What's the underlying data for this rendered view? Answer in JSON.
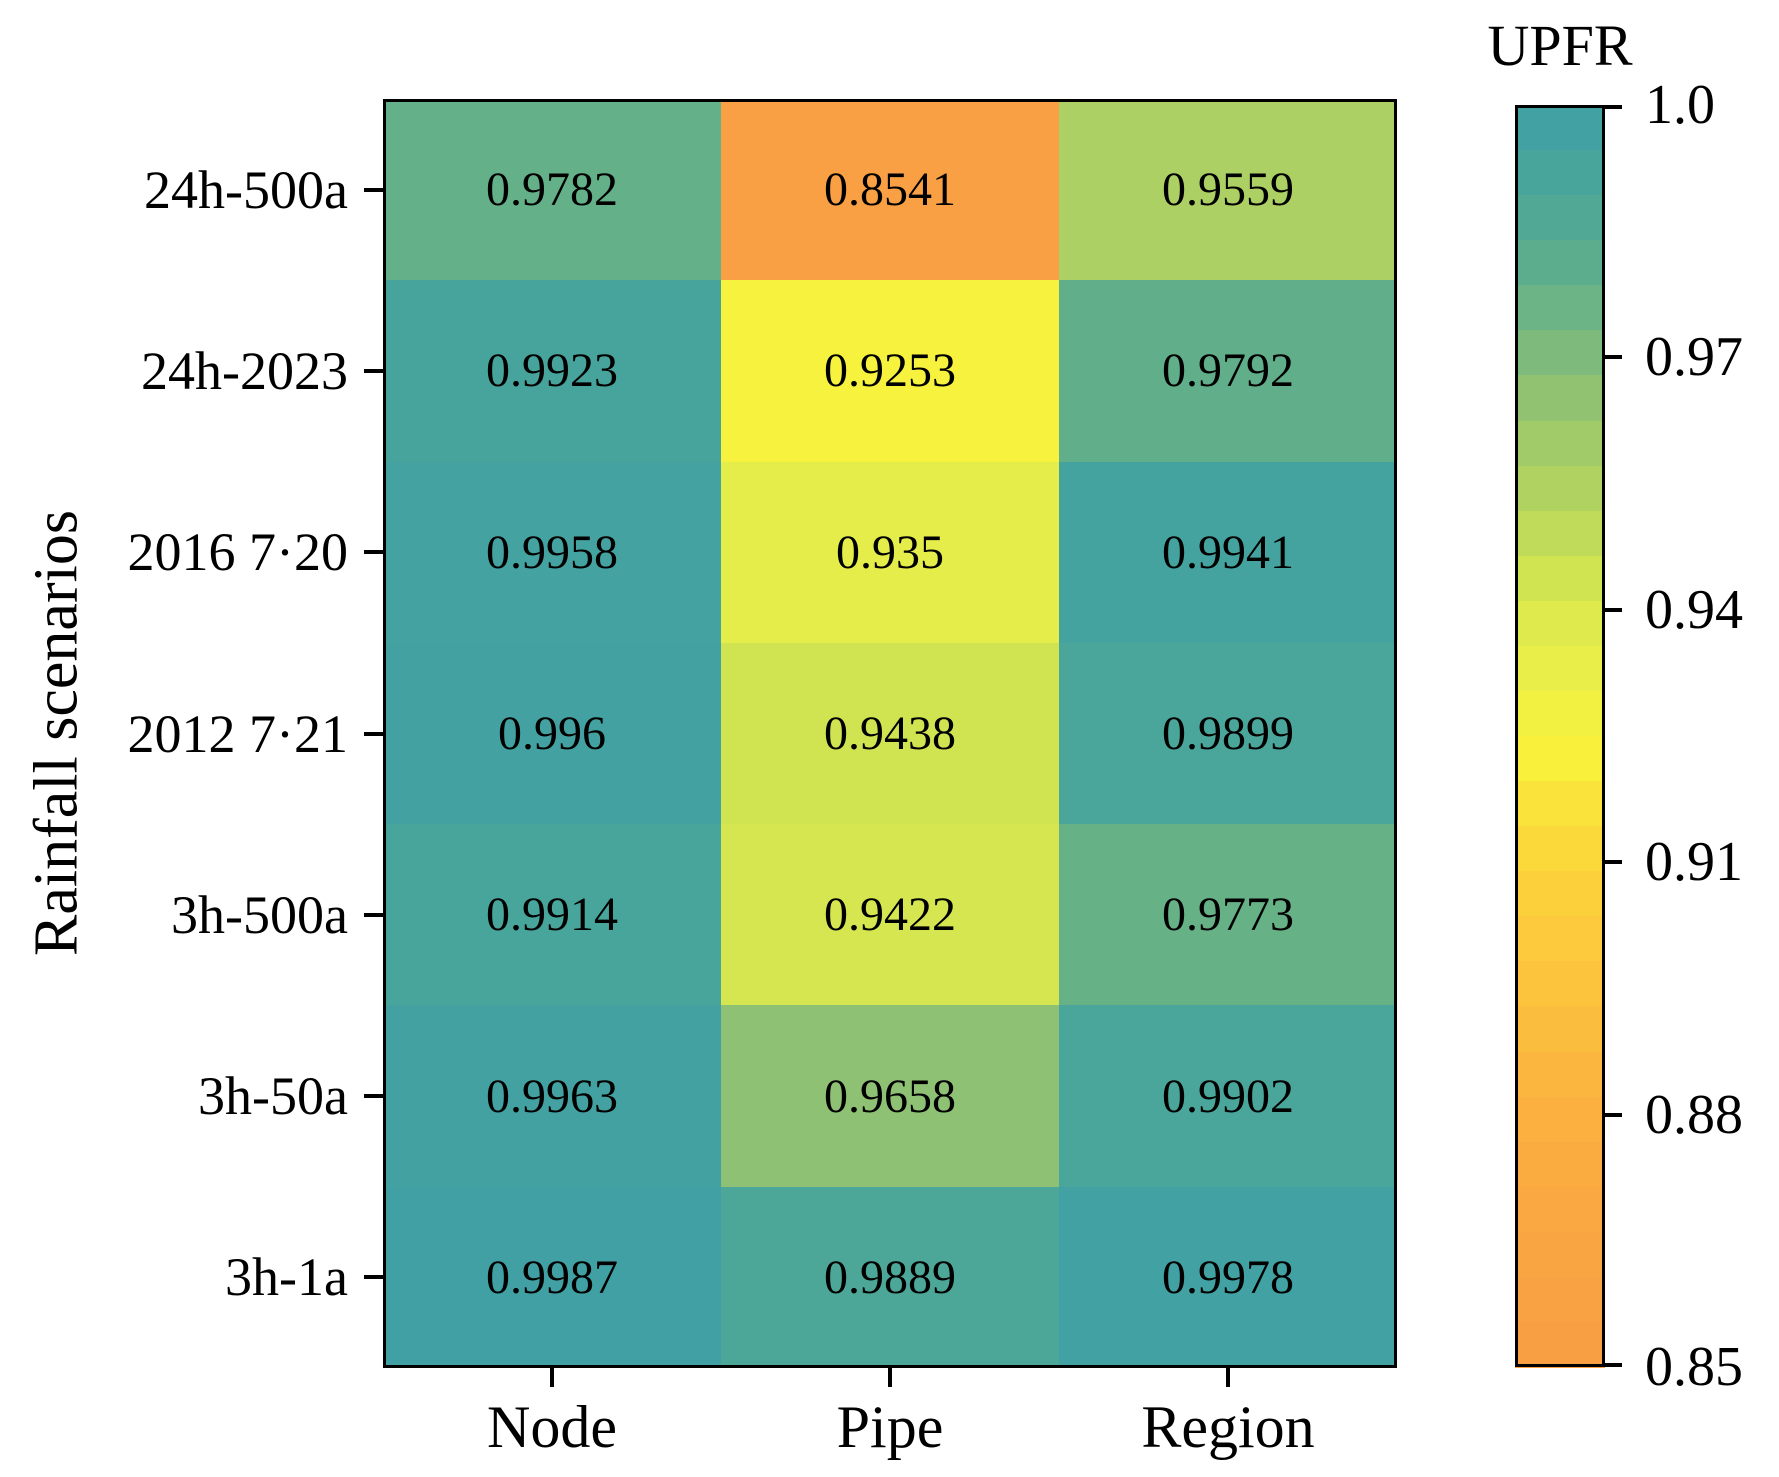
{
  "figure": {
    "y_axis_title": "Rainfall scenarios",
    "colorbar": {
      "title": "UPFR"
    }
  },
  "chart_data": {
    "type": "heatmap",
    "title": "",
    "xlabel": "",
    "ylabel": "Rainfall scenarios",
    "columns": [
      "Node",
      "Pipe",
      "Region"
    ],
    "rows": [
      "24h-500a",
      "24h-2023",
      "2016 7·20",
      "2012 7·21",
      "3h-500a",
      "3h-50a",
      "3h-1a"
    ],
    "values": [
      [
        0.9782,
        0.8541,
        0.9559
      ],
      [
        0.9923,
        0.9253,
        0.9792
      ],
      [
        0.9958,
        0.935,
        0.9941
      ],
      [
        0.996,
        0.9438,
        0.9899
      ],
      [
        0.9914,
        0.9422,
        0.9773
      ],
      [
        0.9963,
        0.9658,
        0.9902
      ],
      [
        0.9987,
        0.9889,
        0.9978
      ]
    ],
    "cell_labels": [
      [
        "0.9782",
        "0.8541",
        "0.9559"
      ],
      [
        "0.9923",
        "0.9253",
        "0.9792"
      ],
      [
        "0.9958",
        "0.935",
        "0.9941"
      ],
      [
        "0.996",
        "0.9438",
        "0.9899"
      ],
      [
        "0.9914",
        "0.9422",
        "0.9773"
      ],
      [
        "0.9963",
        "0.9658",
        "0.9902"
      ],
      [
        "0.9987",
        "0.9889",
        "0.9978"
      ]
    ],
    "colorbar_title": "UPFR",
    "vmin": 0.85,
    "vmax": 1.0,
    "colorbar_ticks": [
      {
        "value": 1.0,
        "label": "1.0"
      },
      {
        "value": 0.97,
        "label": "0.97"
      },
      {
        "value": 0.94,
        "label": "0.94"
      },
      {
        "value": 0.91,
        "label": "0.91"
      },
      {
        "value": 0.88,
        "label": "0.88"
      },
      {
        "value": 0.85,
        "label": "0.85"
      }
    ],
    "colorbar_discrete_steps": 28,
    "colormap_stops": [
      [
        0.85,
        "#f89d44"
      ],
      [
        0.88,
        "#fbb040"
      ],
      [
        0.91,
        "#fcd53a"
      ],
      [
        0.9235,
        "#f8f33b"
      ],
      [
        0.93,
        "#eff046"
      ],
      [
        0.94,
        "#dcea4d"
      ],
      [
        0.952,
        "#b7d65d"
      ],
      [
        0.964,
        "#95c470"
      ],
      [
        0.97,
        "#7fbb7a"
      ],
      [
        0.98,
        "#5ead8c"
      ],
      [
        0.99,
        "#4aa69a"
      ],
      [
        1.0,
        "#3f9fa5"
      ]
    ],
    "legend_position": "right",
    "grid": false
  }
}
